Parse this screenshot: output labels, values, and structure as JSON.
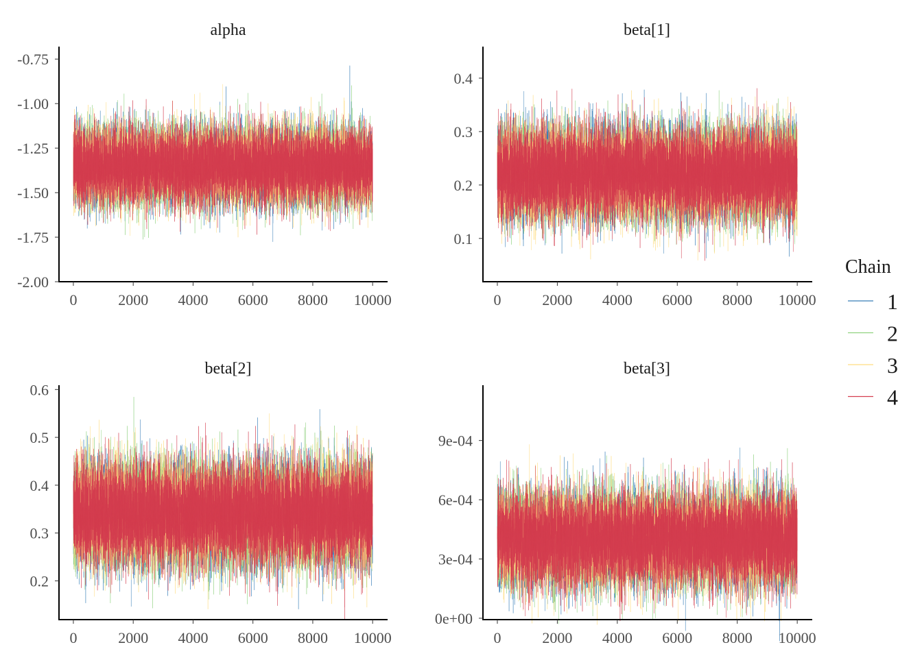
{
  "chart_data": {
    "type": "line",
    "chart_kind": "mcmc-trace",
    "legend": {
      "title": "Chain",
      "position": "right"
    },
    "series": [
      {
        "name": "1",
        "color": "#377eb8"
      },
      {
        "name": "2",
        "color": "#8fd17f"
      },
      {
        "name": "3",
        "color": "#ffdd80"
      },
      {
        "name": "4",
        "color": "#d43d4f"
      }
    ],
    "grid": false,
    "panels": [
      {
        "title": "alpha",
        "xlim": [
          -480,
          10500
        ],
        "ylim": [
          -2.0,
          -0.68
        ],
        "xticks": [
          0,
          2000,
          4000,
          6000,
          8000,
          10000
        ],
        "xtick_labels": [
          "0",
          "2000",
          "4000",
          "6000",
          "8000",
          "10000"
        ],
        "yticks": [
          -2.0,
          -1.75,
          -1.5,
          -1.25,
          -1.0,
          -0.75
        ],
        "ytick_labels": [
          "-2.00",
          "-1.75",
          "-1.50",
          "-1.25",
          "-1.00",
          "-0.75"
        ],
        "iterations": 10000,
        "mean": -1.35,
        "sd": 0.1
      },
      {
        "title": "beta[1]",
        "xlim": [
          -480,
          10500
        ],
        "ylim": [
          0.019,
          0.459
        ],
        "xticks": [
          0,
          2000,
          4000,
          6000,
          8000,
          10000
        ],
        "xtick_labels": [
          "0",
          "2000",
          "4000",
          "6000",
          "8000",
          "10000"
        ],
        "yticks": [
          0.1,
          0.2,
          0.3,
          0.4
        ],
        "ytick_labels": [
          "0.1",
          "0.2",
          "0.3",
          "0.4"
        ],
        "iterations": 10000,
        "mean": 0.222,
        "sd": 0.04
      },
      {
        "title": "beta[2]",
        "xlim": [
          -480,
          10500
        ],
        "ylim": [
          0.119,
          0.609
        ],
        "xticks": [
          0,
          2000,
          4000,
          6000,
          8000,
          10000
        ],
        "xtick_labels": [
          "0",
          "2000",
          "4000",
          "6000",
          "8000",
          "10000"
        ],
        "yticks": [
          0.2,
          0.3,
          0.4,
          0.5,
          0.6
        ],
        "ytick_labels": [
          "0.2",
          "0.3",
          "0.4",
          "0.5",
          "0.6"
        ],
        "iterations": 10000,
        "mean": 0.34,
        "sd": 0.05
      },
      {
        "title": "beta[3]",
        "xlim": [
          -480,
          10500
        ],
        "ylim": [
          -7e-06,
          0.00118
        ],
        "xticks": [
          0,
          2000,
          4000,
          6000,
          8000,
          10000
        ],
        "xtick_labels": [
          "0",
          "2000",
          "4000",
          "6000",
          "8000",
          "10000"
        ],
        "yticks": [
          0,
          0.0003,
          0.0006,
          0.0009
        ],
        "ytick_labels": [
          "0e+00",
          "3e-04",
          "6e-04",
          "9e-04"
        ],
        "iterations": 10000,
        "mean": 0.0004,
        "sd": 0.00011
      }
    ]
  }
}
